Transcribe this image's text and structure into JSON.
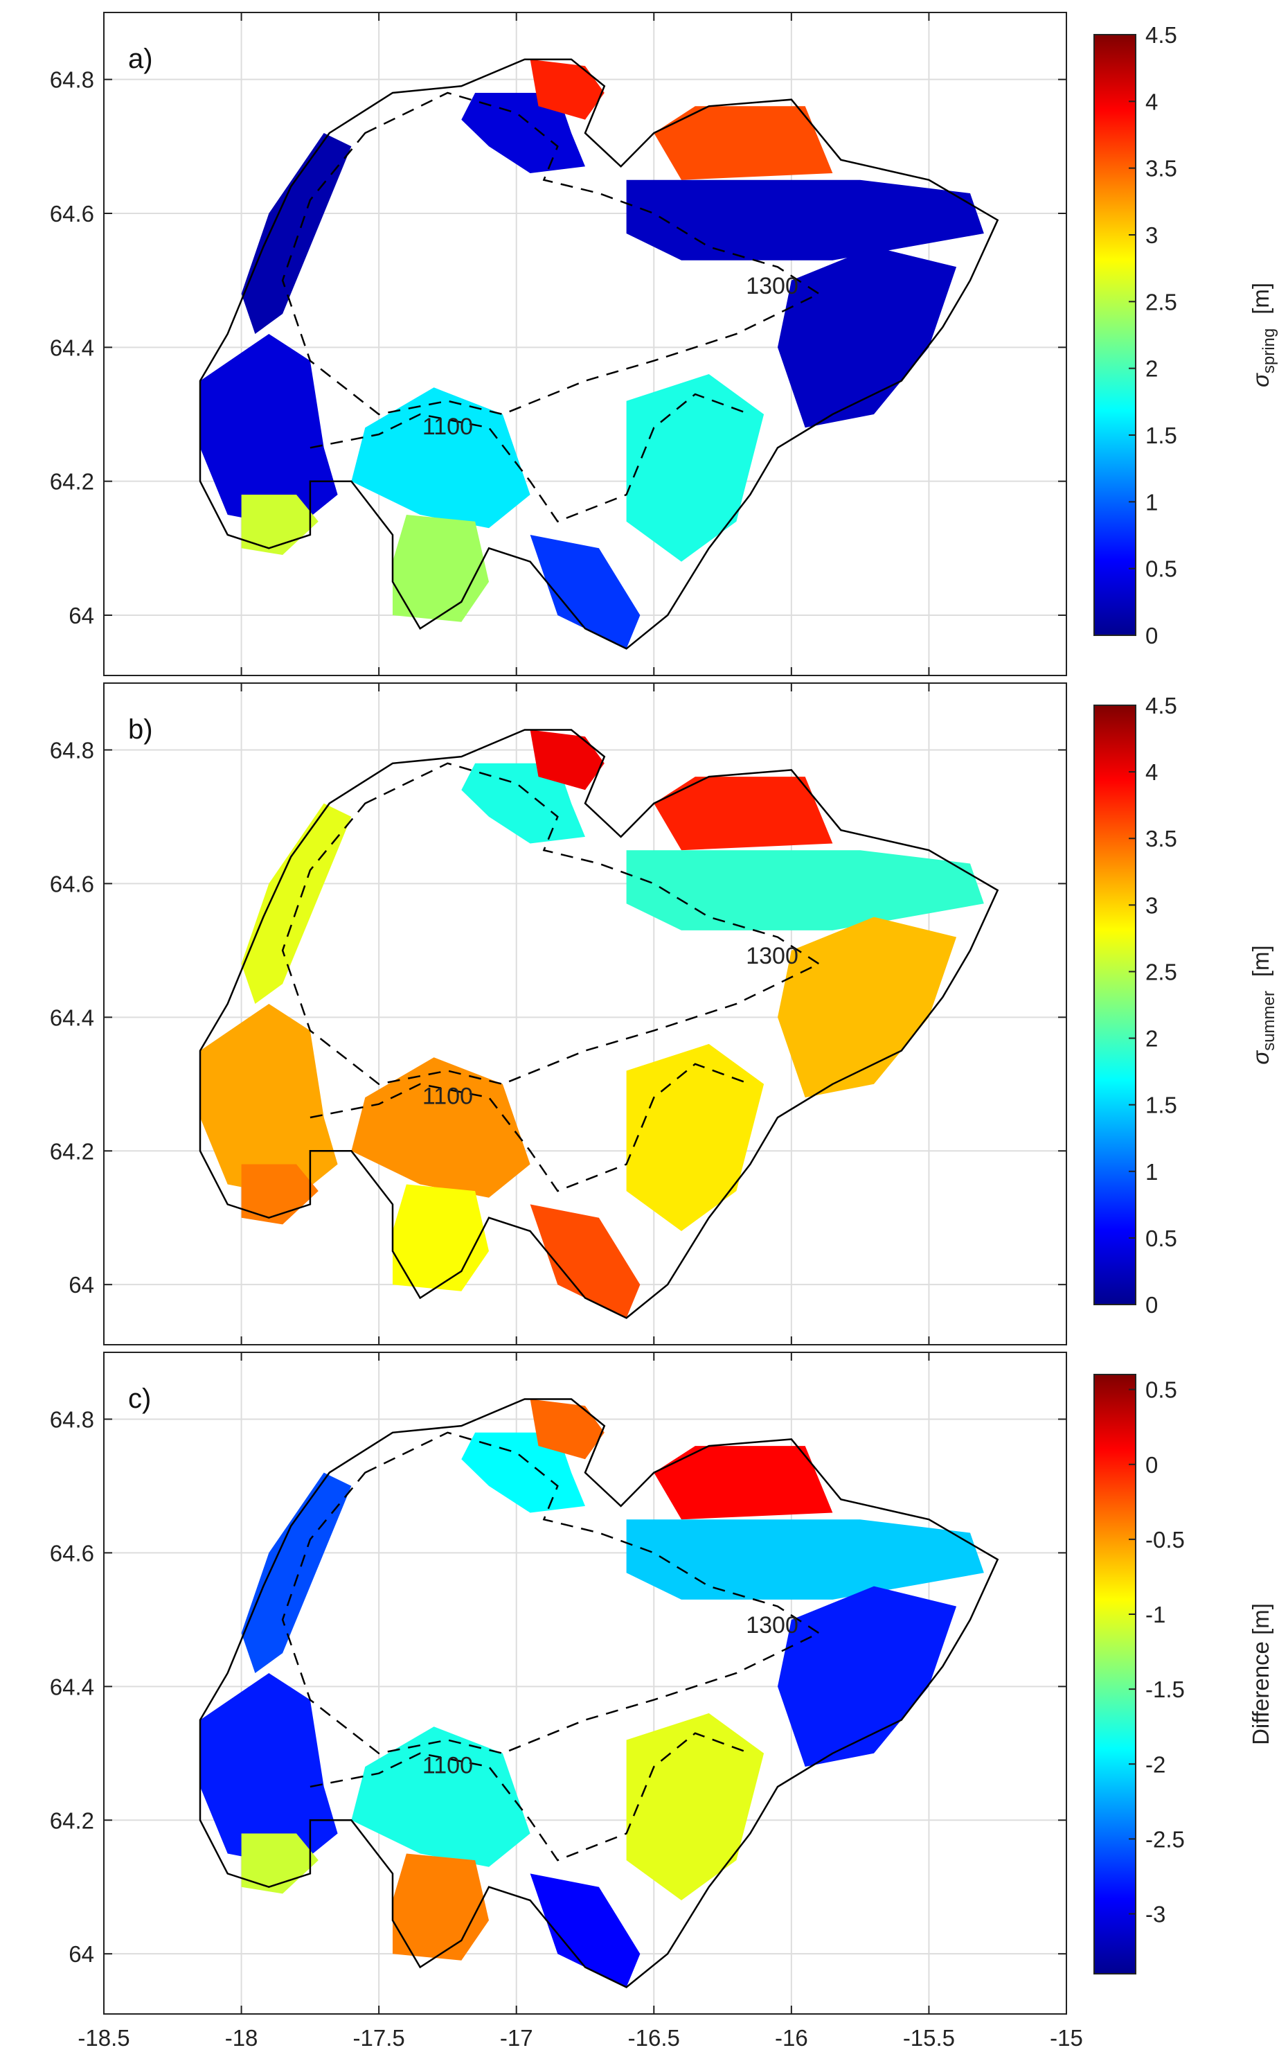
{
  "figure": {
    "x_ticks": [
      "-18.5",
      "-18",
      "-17.5",
      "-17",
      "-16.5",
      "-16",
      "-15.5",
      "-15"
    ],
    "y_ticks": [
      "64",
      "64.2",
      "64.4",
      "64.6",
      "64.8"
    ]
  },
  "chart_data": [
    {
      "type": "heatmap",
      "panel_label": "a)",
      "xlim": [
        -18.5,
        -15
      ],
      "ylim": [
        63.91,
        64.9
      ],
      "grid": true,
      "contour_labels": [
        "1300",
        "1100"
      ],
      "colorbar": {
        "label_symbol": "σ",
        "label_sub": "spring",
        "label_unit": "[m]",
        "range": [
          0,
          4.5
        ],
        "ticks": [
          "0",
          "0.5",
          "1",
          "1.5",
          "2",
          "2.5",
          "3",
          "3.5",
          "4",
          "4.5"
        ]
      },
      "regions": [
        {
          "name": "northwest lobe",
          "value": 0.4
        },
        {
          "name": "north tip",
          "value": 3.8
        },
        {
          "name": "northeast upper",
          "value": 3.6
        },
        {
          "name": "northeast lower",
          "value": 0.3
        },
        {
          "name": "western margin",
          "value": 0.2
        },
        {
          "name": "southwest lobe",
          "value": 0.4
        },
        {
          "name": "southwest tip",
          "value": 2.6
        },
        {
          "name": "south-central lobe",
          "value": 1.6
        },
        {
          "name": "south-central lower",
          "value": 2.4
        },
        {
          "name": "south outlet",
          "value": 0.8
        },
        {
          "name": "southeast lobe",
          "value": 1.8
        },
        {
          "name": "eastern margin",
          "value": 0.3
        }
      ]
    },
    {
      "type": "heatmap",
      "panel_label": "b)",
      "xlim": [
        -18.5,
        -15
      ],
      "ylim": [
        63.91,
        64.9
      ],
      "grid": true,
      "contour_labels": [
        "1300",
        "1100"
      ],
      "colorbar": {
        "label_symbol": "σ",
        "label_sub": "summer",
        "label_unit": "[m]",
        "range": [
          0,
          4.5
        ],
        "ticks": [
          "0",
          "0.5",
          "1",
          "1.5",
          "2",
          "2.5",
          "3",
          "3.5",
          "4",
          "4.5"
        ]
      },
      "regions": [
        {
          "name": "northwest lobe",
          "value": 1.8
        },
        {
          "name": "north tip",
          "value": 4.0
        },
        {
          "name": "northeast upper",
          "value": 3.8
        },
        {
          "name": "northeast lower",
          "value": 1.9
        },
        {
          "name": "western margin",
          "value": 2.7
        },
        {
          "name": "southwest lobe",
          "value": 3.2
        },
        {
          "name": "southwest tip",
          "value": 3.4
        },
        {
          "name": "south-central lobe",
          "value": 3.3
        },
        {
          "name": "south-central lower",
          "value": 2.8
        },
        {
          "name": "south outlet",
          "value": 3.6
        },
        {
          "name": "southeast lobe",
          "value": 2.9
        },
        {
          "name": "eastern margin",
          "value": 3.1
        }
      ]
    },
    {
      "type": "heatmap",
      "panel_label": "c)",
      "xlim": [
        -18.5,
        -15
      ],
      "ylim": [
        63.91,
        64.9
      ],
      "grid": true,
      "contour_labels": [
        "1300",
        "1100"
      ],
      "colorbar": {
        "label": "Difference [m]",
        "range": [
          -3.4,
          0.6
        ],
        "ticks": [
          "-3",
          "-2.5",
          "-2",
          "-1.5",
          "-1",
          "-0.5",
          "0",
          "0.5"
        ]
      },
      "regions": [
        {
          "name": "northwest lobe",
          "value": -1.9
        },
        {
          "name": "north tip",
          "value": -0.3
        },
        {
          "name": "northeast upper",
          "value": 0.1
        },
        {
          "name": "northeast lower",
          "value": -2.1
        },
        {
          "name": "western margin",
          "value": -2.6
        },
        {
          "name": "southwest lobe",
          "value": -2.8
        },
        {
          "name": "southwest tip",
          "value": -1.1
        },
        {
          "name": "south-central lobe",
          "value": -1.8
        },
        {
          "name": "south-central lower",
          "value": -0.4
        },
        {
          "name": "south outlet",
          "value": -2.9
        },
        {
          "name": "southeast lobe",
          "value": -1.0
        },
        {
          "name": "eastern margin",
          "value": -2.8
        }
      ]
    }
  ]
}
